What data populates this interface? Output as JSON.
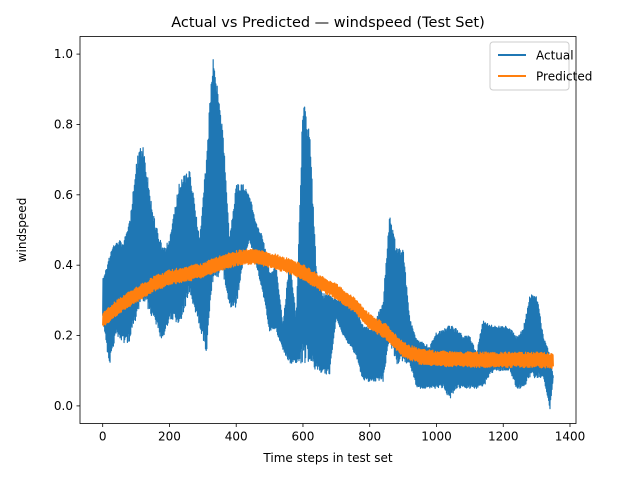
{
  "chart_data": {
    "type": "line",
    "title": "Actual vs Predicted — windspeed (Test Set)",
    "xlabel": "Time steps in test set",
    "ylabel": "windspeed",
    "xlim": [
      -68,
      1418
    ],
    "ylim": [
      -0.05,
      1.05
    ],
    "xticks": [
      0,
      200,
      400,
      600,
      800,
      1000,
      1200,
      1400
    ],
    "yticks": [
      0.0,
      0.2,
      0.4,
      0.6,
      0.8,
      1.0
    ],
    "grid": false,
    "legend_position": "top-right",
    "series": [
      {
        "name": "Actual",
        "color": "#1f77b4",
        "envelope_x": [
          0,
          20,
          40,
          60,
          80,
          100,
          120,
          150,
          180,
          200,
          230,
          260,
          290,
          310,
          330,
          360,
          380,
          400,
          420,
          440,
          460,
          480,
          500,
          520,
          540,
          560,
          580,
          600,
          620,
          640,
          660,
          680,
          700,
          720,
          740,
          760,
          780,
          800,
          820,
          840,
          860,
          880,
          900,
          920,
          940,
          960,
          980,
          1000,
          1020,
          1040,
          1060,
          1080,
          1100,
          1120,
          1140,
          1160,
          1180,
          1200,
          1220,
          1240,
          1260,
          1280,
          1300,
          1320,
          1340,
          1350
        ],
        "upper": [
          0.36,
          0.43,
          0.48,
          0.47,
          0.52,
          0.7,
          0.75,
          0.55,
          0.45,
          0.47,
          0.64,
          0.68,
          0.48,
          0.7,
          1.0,
          0.79,
          0.48,
          0.63,
          0.63,
          0.6,
          0.52,
          0.48,
          0.38,
          0.4,
          0.23,
          0.42,
          0.25,
          0.88,
          0.78,
          0.4,
          0.32,
          0.32,
          0.3,
          0.31,
          0.3,
          0.27,
          0.23,
          0.22,
          0.25,
          0.3,
          0.55,
          0.45,
          0.45,
          0.25,
          0.19,
          0.18,
          0.17,
          0.21,
          0.22,
          0.23,
          0.22,
          0.2,
          0.2,
          0.15,
          0.25,
          0.23,
          0.23,
          0.23,
          0.22,
          0.2,
          0.22,
          0.32,
          0.32,
          0.2,
          0.15,
          0.08
        ],
        "lower": [
          0.25,
          0.11,
          0.2,
          0.18,
          0.18,
          0.25,
          0.3,
          0.25,
          0.18,
          0.25,
          0.23,
          0.32,
          0.23,
          0.14,
          0.35,
          0.38,
          0.28,
          0.28,
          0.4,
          0.47,
          0.4,
          0.32,
          0.21,
          0.21,
          0.16,
          0.12,
          0.12,
          0.12,
          0.12,
          0.1,
          0.09,
          0.09,
          0.25,
          0.2,
          0.17,
          0.14,
          0.07,
          0.07,
          0.07,
          0.07,
          0.18,
          0.12,
          0.12,
          0.12,
          0.05,
          0.05,
          0.05,
          0.05,
          0.05,
          0.02,
          0.05,
          0.05,
          0.05,
          0.05,
          0.05,
          0.09,
          0.1,
          0.1,
          0.1,
          0.05,
          0.05,
          0.08,
          0.08,
          0.08,
          -0.01,
          0.08
        ]
      },
      {
        "name": "Predicted",
        "color": "#ff7f0e",
        "x": [
          0,
          50,
          100,
          150,
          200,
          250,
          300,
          350,
          400,
          450,
          500,
          550,
          600,
          650,
          700,
          750,
          800,
          850,
          900,
          950,
          1000,
          1050,
          1100,
          1150,
          1200,
          1250,
          1300,
          1350
        ],
        "values": [
          0.245,
          0.285,
          0.315,
          0.345,
          0.365,
          0.375,
          0.385,
          0.405,
          0.42,
          0.425,
          0.415,
          0.4,
          0.38,
          0.35,
          0.325,
          0.29,
          0.24,
          0.21,
          0.16,
          0.14,
          0.135,
          0.133,
          0.132,
          0.131,
          0.131,
          0.131,
          0.131,
          0.128
        ],
        "band_halfwidth": 0.022
      }
    ]
  }
}
